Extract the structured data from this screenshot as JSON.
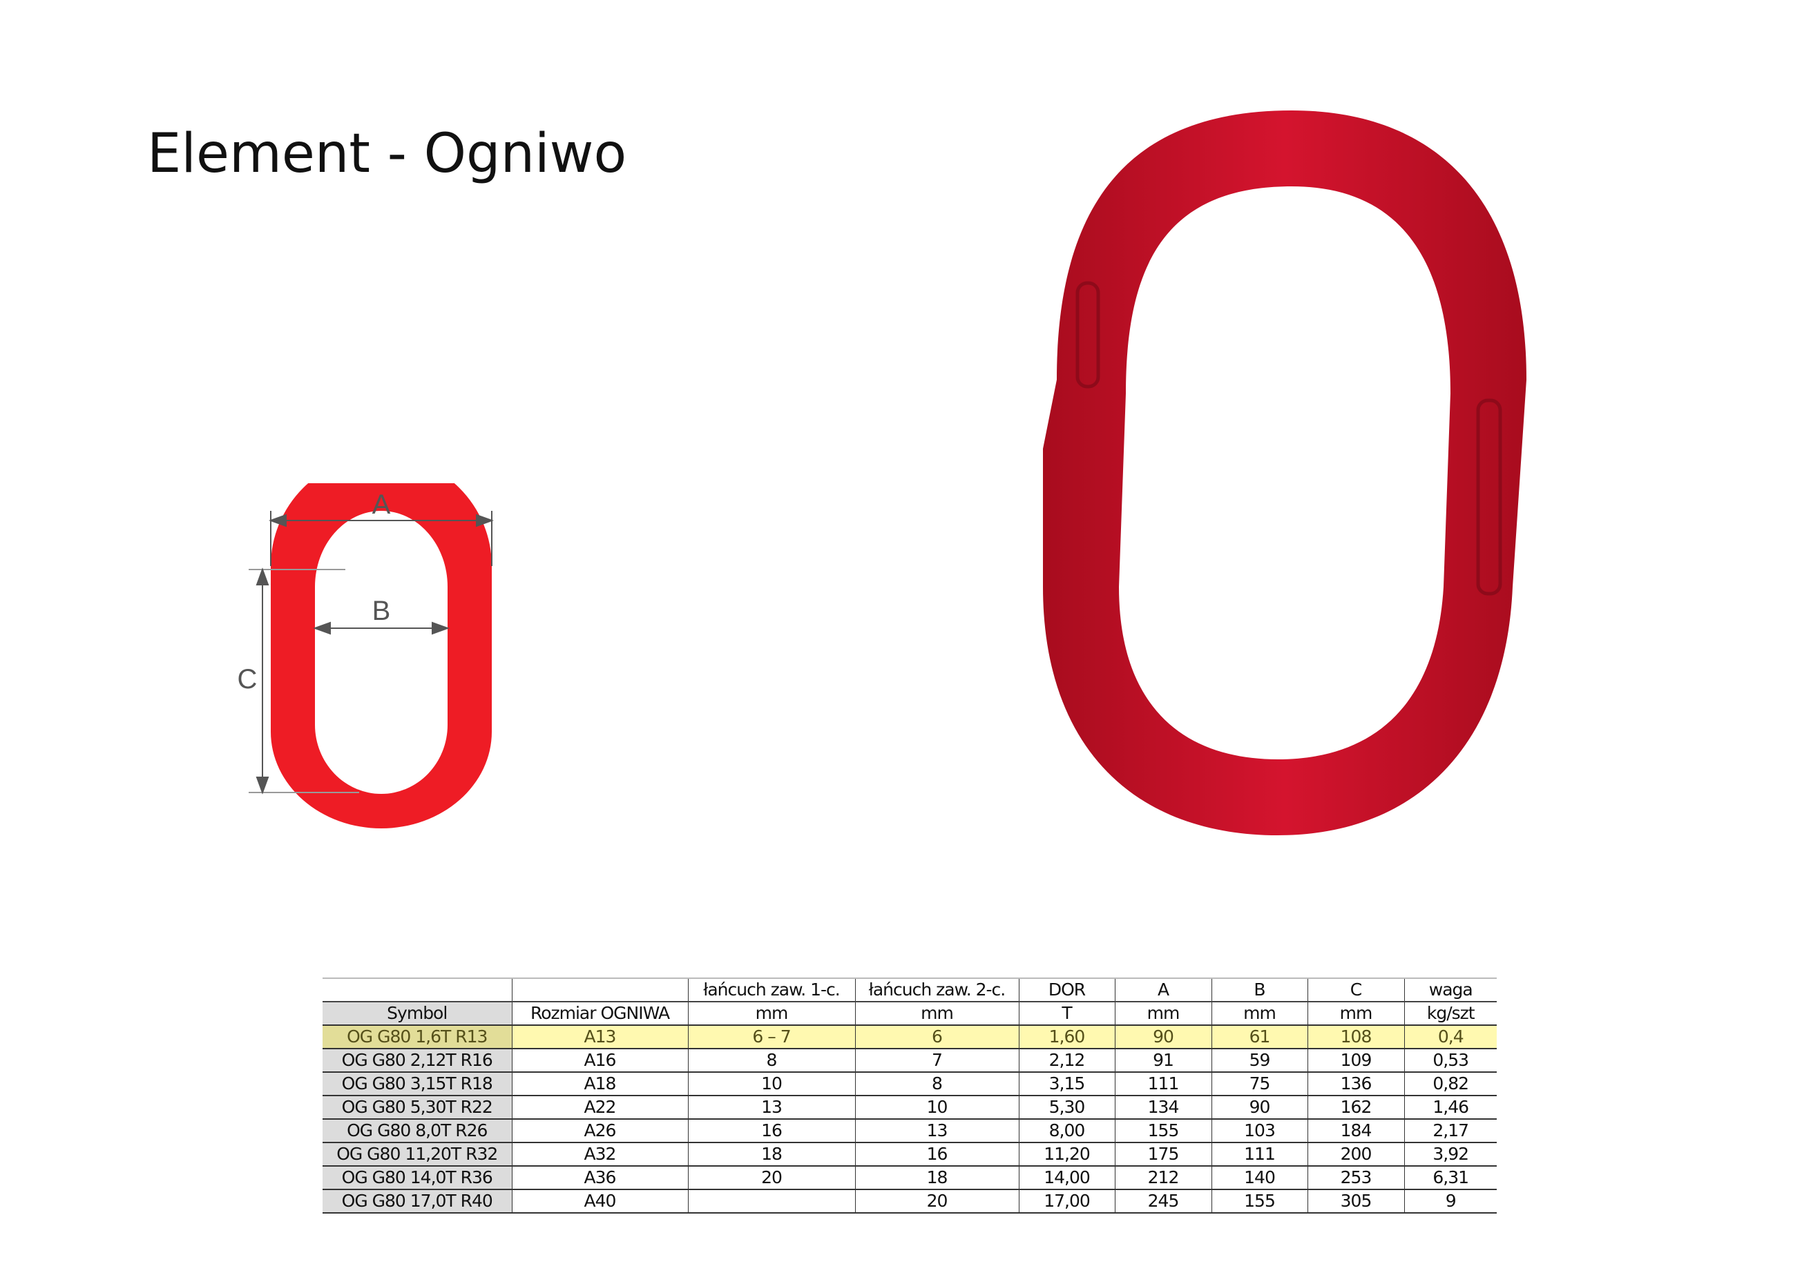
{
  "title": "Element - Ogniwo",
  "diagram": {
    "label_a": "A",
    "label_b": "B",
    "label_c": "C",
    "color": "#ee1c25"
  },
  "photo": {
    "color": "#c8102e"
  },
  "table": {
    "header_row1": [
      "",
      "",
      "łańcuch zaw. 1-c.",
      "łańcuch zaw. 2-c.",
      "DOR",
      "A",
      "B",
      "C",
      "waga"
    ],
    "header_row2": [
      "Symbol",
      "Rozmiar OGNIWA",
      "mm",
      "mm",
      "T",
      "mm",
      "mm",
      "mm",
      "kg/szt"
    ],
    "highlight_color": "#fff9b0",
    "rows": [
      [
        "OG G80 1,6T R13",
        "A13",
        "6 – 7",
        "6",
        "1,60",
        "90",
        "61",
        "108",
        "0,4"
      ],
      [
        "OG G80 2,12T R16",
        "A16",
        "8",
        "7",
        "2,12",
        "91",
        "59",
        "109",
        "0,53"
      ],
      [
        "OG G80 3,15T R18",
        "A18",
        "10",
        "8",
        "3,15",
        "111",
        "75",
        "136",
        "0,82"
      ],
      [
        "OG G80 5,30T R22",
        "A22",
        "13",
        "10",
        "5,30",
        "134",
        "90",
        "162",
        "1,46"
      ],
      [
        "OG G80 8,0T R26",
        "A26",
        "16",
        "13",
        "8,00",
        "155",
        "103",
        "184",
        "2,17"
      ],
      [
        "OG G80 11,20T R32",
        "A32",
        "18",
        "16",
        "11,20",
        "175",
        "111",
        "200",
        "3,92"
      ],
      [
        "OG G80 14,0T R36",
        "A36",
        "20",
        "18",
        "14,00",
        "212",
        "140",
        "253",
        "6,31"
      ],
      [
        "OG G80 17,0T R40",
        "A40",
        "",
        "20",
        "17,00",
        "245",
        "155",
        "305",
        "9"
      ]
    ]
  }
}
